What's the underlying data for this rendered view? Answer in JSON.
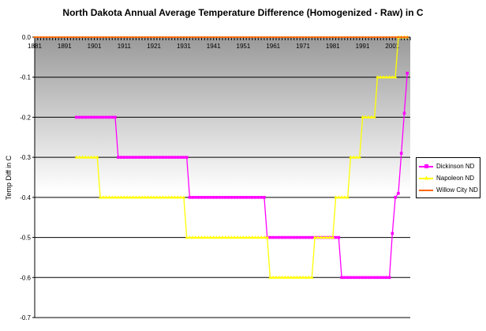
{
  "chart_data": {
    "type": "line",
    "title": "North Dakota Annual Average Temperature Difference (Homogenized - Raw) in C",
    "ylabel": "Temp Diff in C",
    "xlabel": "",
    "xlim": [
      1881,
      2007
    ],
    "ylim": [
      -0.7,
      0.0
    ],
    "yticks": [
      "0.0",
      "-0.1",
      "-0.2",
      "-0.3",
      "-0.4",
      "-0.5",
      "-0.6",
      "-0.7"
    ],
    "xticks": [
      "1881",
      "1891",
      "1901",
      "1911",
      "1921",
      "1931",
      "1941",
      "1951",
      "1961",
      "1971",
      "1981",
      "1991",
      "2001"
    ],
    "grid": true,
    "legend_position": "right",
    "series": [
      {
        "name": "Dickinson ND",
        "color": "#ff00ff",
        "marker": "square",
        "x": [
          1895,
          1908,
          1909,
          1932,
          1933,
          1958,
          1959,
          1983,
          1984,
          2000,
          2001,
          2002,
          2003,
          2004,
          2005,
          2006
        ],
        "y": [
          -0.2,
          -0.2,
          -0.3,
          -0.3,
          -0.4,
          -0.4,
          -0.5,
          -0.5,
          -0.6,
          -0.6,
          -0.49,
          -0.4,
          -0.39,
          -0.29,
          -0.19,
          -0.09
        ]
      },
      {
        "name": "Napoleon ND",
        "color": "#ffff00",
        "marker": "triangle",
        "x": [
          1895,
          1902,
          1903,
          1931,
          1932,
          1959,
          1960,
          1974,
          1975,
          1981,
          1982,
          1986,
          1987,
          1990,
          1991,
          1995,
          1996,
          2000,
          2002,
          2003,
          2004,
          2005,
          2006
        ],
        "y": [
          -0.3,
          -0.3,
          -0.4,
          -0.4,
          -0.5,
          -0.5,
          -0.6,
          -0.6,
          -0.5,
          -0.5,
          -0.4,
          -0.4,
          -0.3,
          -0.3,
          -0.2,
          -0.2,
          -0.1,
          -0.1,
          -0.1,
          -0.0,
          0.0,
          0.0,
          0.0
        ]
      },
      {
        "name": "Willow City ND",
        "color": "#ff6600",
        "marker": "dash",
        "x": [
          1881,
          2006
        ],
        "y": [
          0.0,
          0.0
        ]
      }
    ]
  }
}
